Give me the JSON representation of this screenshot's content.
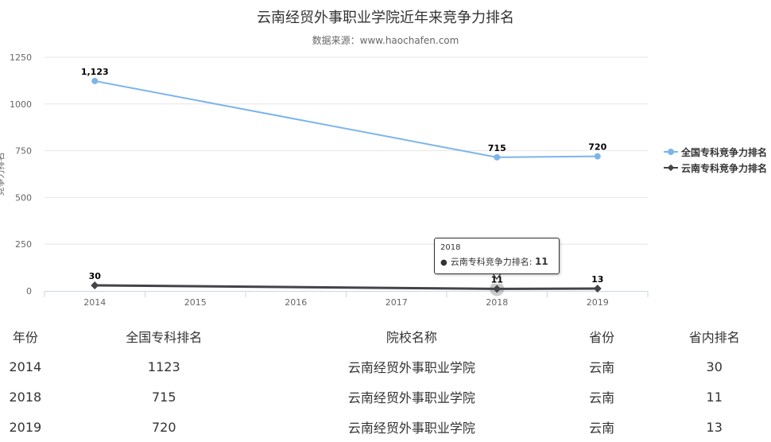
{
  "chart_data": {
    "type": "line",
    "title": "云南经贸外事职业学院近年来竞争力排名",
    "subtitle": "数据来源：www.haochafen.com",
    "ylabel": "竞争力排名",
    "categories": [
      "2014",
      "2015",
      "2016",
      "2017",
      "2018",
      "2019"
    ],
    "ylim": [
      0,
      1250
    ],
    "yticks": [
      "0",
      "250",
      "500",
      "750",
      "1000",
      "1250"
    ],
    "grid": true,
    "legend_position": "right",
    "series": [
      {
        "name": "全国专科竞争力排名",
        "color": "#7cb5ec",
        "marker": "circle",
        "points": [
          {
            "x": "2014",
            "y": 1123,
            "label": "1,123"
          },
          {
            "x": "2018",
            "y": 715,
            "label": "715"
          },
          {
            "x": "2019",
            "y": 720,
            "label": "720"
          }
        ]
      },
      {
        "name": "云南专科竞争力排名",
        "color": "#434348",
        "marker": "diamond",
        "points": [
          {
            "x": "2014",
            "y": 30,
            "label": "30"
          },
          {
            "x": "2018",
            "y": 11,
            "label": "11"
          },
          {
            "x": "2019",
            "y": 13,
            "label": "13"
          }
        ]
      }
    ],
    "tooltip": {
      "header": "2018",
      "series_label": "云南专科竞争力排名:",
      "value": "11"
    }
  },
  "table": {
    "headers": [
      "年份",
      "全国专科排名",
      "院校名称",
      "省份",
      "省内排名"
    ],
    "rows": [
      [
        "2014",
        "1123",
        "云南经贸外事职业学院",
        "云南",
        "30"
      ],
      [
        "2018",
        "715",
        "云南经贸外事职业学院",
        "云南",
        "11"
      ],
      [
        "2019",
        "720",
        "云南经贸外事职业学院",
        "云南",
        "13"
      ]
    ]
  }
}
